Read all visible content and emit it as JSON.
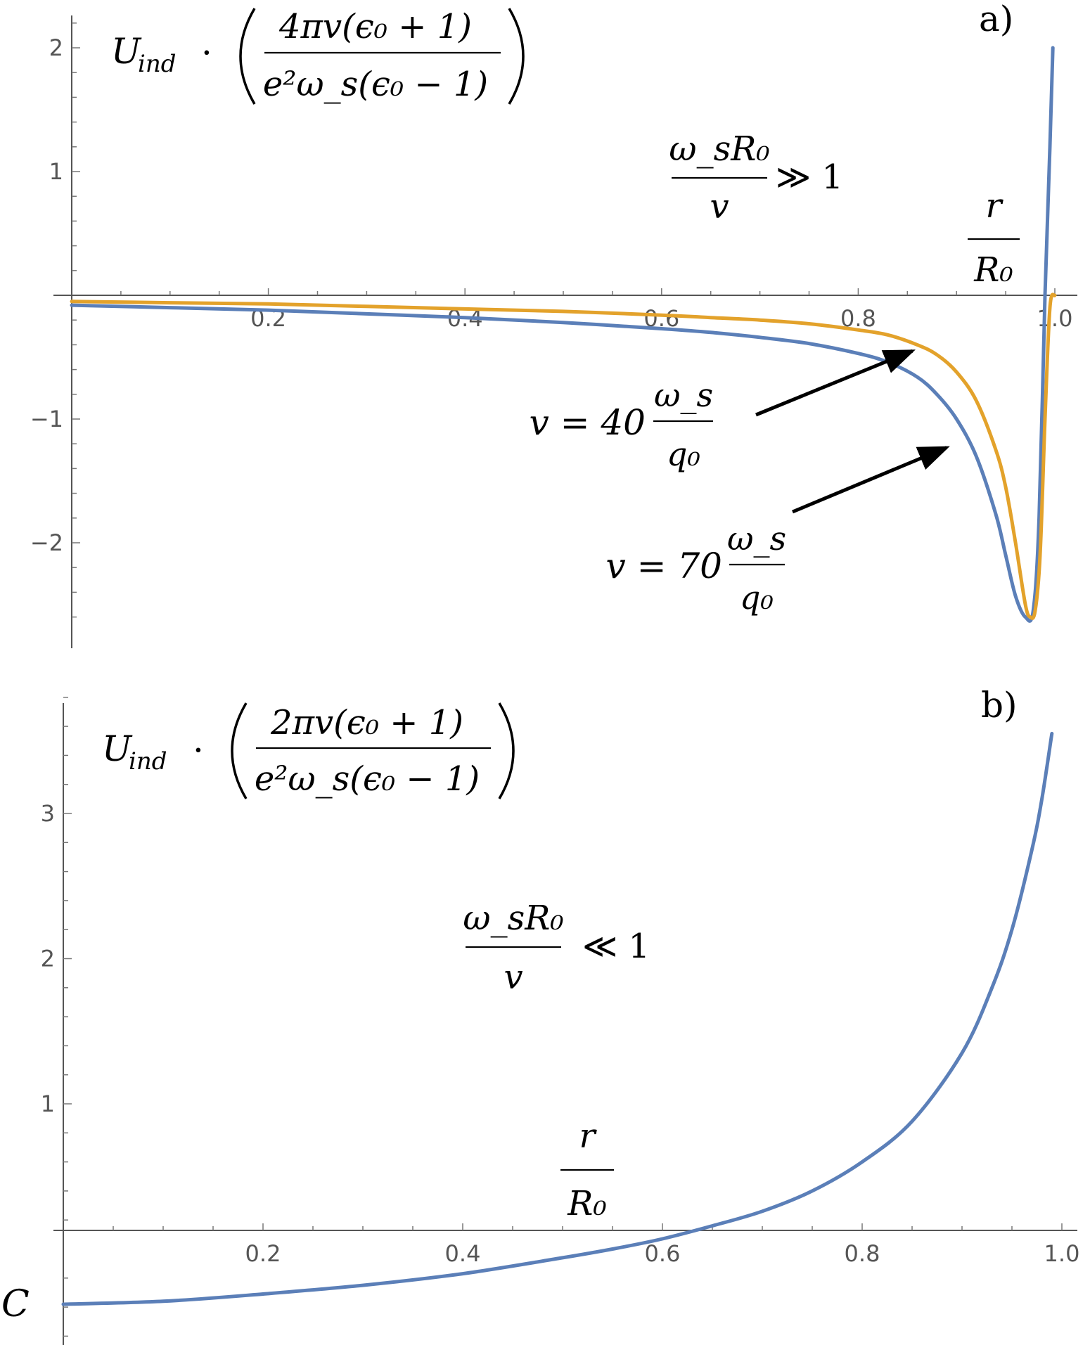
{
  "chart_data": [
    {
      "id": "a",
      "type": "line",
      "panel_label": "a)",
      "ylabel": {
        "lhs": "U",
        "lhs_sub": "ind",
        "operator": "·",
        "numerator": "4πv(ϵ₀ + 1)",
        "denominator": "e²ω_s(ϵ₀ − 1)"
      },
      "xlabel": {
        "numerator": "r",
        "denominator": "R₀"
      },
      "condition": {
        "numerator": "ω_sR₀",
        "denominator": "v",
        "relation": "≫ 1"
      },
      "xlim": [
        0,
        1.0
      ],
      "ylim": [
        -2.7,
        2.2
      ],
      "x_ticks": [
        {
          "value": 0.2,
          "label": "0.2"
        },
        {
          "value": 0.4,
          "label": "0.4"
        },
        {
          "value": 0.6,
          "label": "0.6"
        },
        {
          "value": 0.8,
          "label": "0.8"
        },
        {
          "value": 1.0,
          "label": "1.0"
        }
      ],
      "y_ticks": [
        {
          "value": 2,
          "label": "2"
        },
        {
          "value": 1,
          "label": "1"
        },
        {
          "value": -1,
          "label": "−1"
        },
        {
          "value": -2,
          "label": "−2"
        }
      ],
      "grid": false,
      "series": [
        {
          "color": "#5B7FB8",
          "x": [
            0,
            0.1,
            0.2,
            0.3,
            0.4,
            0.5,
            0.6,
            0.65,
            0.7,
            0.75,
            0.8,
            0.83,
            0.86,
            0.88,
            0.9,
            0.92,
            0.94,
            0.95,
            0.96,
            0.97,
            0.978,
            0.984,
            0.99,
            0.995,
            0.998
          ],
          "y": [
            -0.08,
            -0.1,
            -0.12,
            -0.15,
            -0.18,
            -0.22,
            -0.27,
            -0.3,
            -0.34,
            -0.39,
            -0.47,
            -0.54,
            -0.66,
            -0.8,
            -1.0,
            -1.3,
            -1.77,
            -2.1,
            -2.43,
            -2.6,
            -2.55,
            -1.8,
            0.0,
            1.2,
            2.0
          ]
        },
        {
          "color": "#E3A22B",
          "x": [
            0,
            0.1,
            0.2,
            0.3,
            0.4,
            0.5,
            0.6,
            0.65,
            0.7,
            0.75,
            0.8,
            0.83,
            0.86,
            0.88,
            0.9,
            0.92,
            0.94,
            0.95,
            0.96,
            0.97,
            0.975,
            0.98,
            0.985,
            0.99,
            0.995,
            1.0
          ],
          "y": [
            -0.05,
            -0.06,
            -0.07,
            -0.09,
            -0.11,
            -0.13,
            -0.16,
            -0.18,
            -0.2,
            -0.23,
            -0.28,
            -0.32,
            -0.4,
            -0.48,
            -0.62,
            -0.85,
            -1.25,
            -1.55,
            -2.0,
            -2.5,
            -2.6,
            -2.55,
            -2.1,
            -1.0,
            -0.1,
            0.0
          ]
        }
      ],
      "annotations": [
        {
          "id": "v40",
          "lhs": "v = 40",
          "numerator": "ω_s",
          "denominator": "q₀",
          "points_to": {
            "x": 0.855,
            "y": -0.45
          }
        },
        {
          "id": "v70",
          "lhs": "v = 70",
          "numerator": "ω_s",
          "denominator": "q₀",
          "points_to": {
            "x": 0.89,
            "y": -1.23
          }
        }
      ]
    },
    {
      "id": "b",
      "type": "line",
      "panel_label": "b)",
      "ylabel": {
        "lhs": "U",
        "lhs_sub": "ind",
        "operator": "·",
        "numerator": "2πv(ϵ₀ + 1)",
        "denominator": "e²ω_s(ϵ₀ − 1)"
      },
      "xlabel": {
        "numerator": "r",
        "denominator": "R₀"
      },
      "condition": {
        "numerator": "ω_sR₀",
        "denominator": "v",
        "relation": "≪ 1"
      },
      "corner_label": "C",
      "xlim": [
        0,
        1.0
      ],
      "ylim": [
        -0.6,
        3.9
      ],
      "x_ticks": [
        {
          "value": 0.2,
          "label": "0.2"
        },
        {
          "value": 0.4,
          "label": "0.4"
        },
        {
          "value": 0.6,
          "label": "0.6"
        },
        {
          "value": 0.8,
          "label": "0.8"
        },
        {
          "value": 1.0,
          "label": "1.0"
        }
      ],
      "y_ticks": [
        {
          "value": 1,
          "label": "1"
        },
        {
          "value": 2,
          "label": "2"
        },
        {
          "value": 3,
          "label": "3"
        }
      ],
      "grid": false,
      "series": [
        {
          "color": "#5B7FB8",
          "x": [
            0,
            0.1,
            0.2,
            0.3,
            0.4,
            0.5,
            0.55,
            0.6,
            0.65,
            0.7,
            0.75,
            0.8,
            0.85,
            0.9,
            0.93,
            0.95,
            0.97,
            0.98,
            0.99
          ],
          "y": [
            -0.38,
            -0.36,
            -0.31,
            -0.25,
            -0.17,
            -0.06,
            0.0,
            0.07,
            0.16,
            0.26,
            0.4,
            0.6,
            0.88,
            1.35,
            1.8,
            2.2,
            2.75,
            3.1,
            3.55
          ]
        }
      ]
    }
  ]
}
